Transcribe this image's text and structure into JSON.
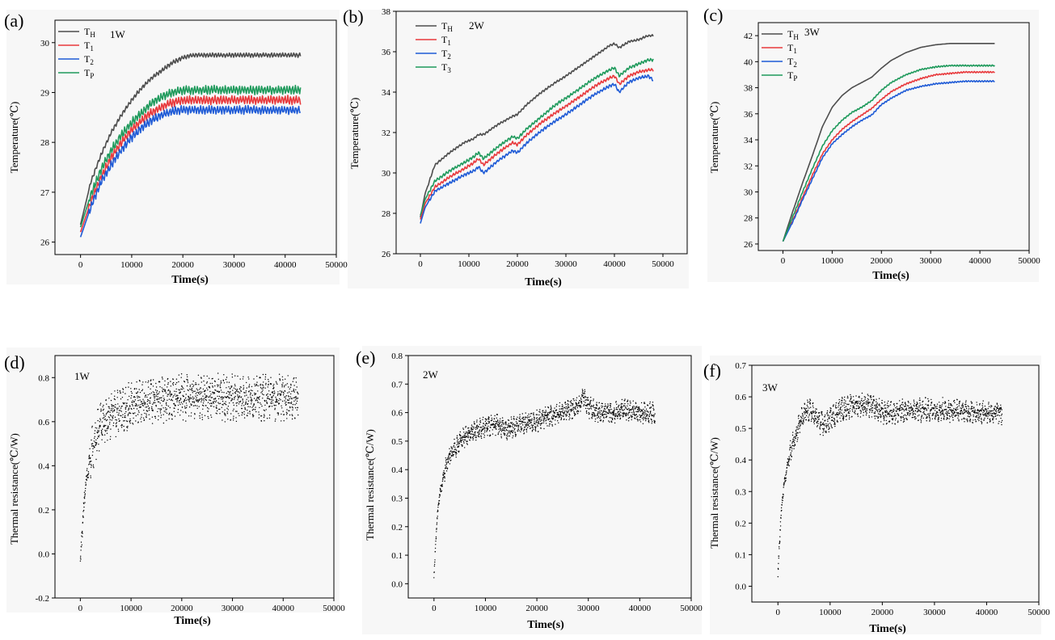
{
  "chart_data": [
    {
      "panel": "(a)",
      "type": "line",
      "annotation": "1W",
      "xlabel": "Time(s)",
      "ylabel": "Temperature(℃)",
      "xlim": [
        -5000,
        50000
      ],
      "ylim": [
        25.75,
        30.45
      ],
      "xticks": [
        0,
        10000,
        20000,
        30000,
        40000,
        50000
      ],
      "yticks": [
        26,
        27,
        28,
        29,
        30
      ],
      "x": [
        0,
        2000,
        4000,
        6000,
        8000,
        10000,
        12000,
        14000,
        16000,
        18000,
        20000,
        22000,
        25000,
        30000,
        35000,
        40000,
        43000
      ],
      "series": [
        {
          "name": "TH",
          "main": "T",
          "sub": "H",
          "color": "#4d4d4d",
          "amp": 0.04,
          "values": [
            26.35,
            27.2,
            27.75,
            28.2,
            28.55,
            28.85,
            29.1,
            29.3,
            29.45,
            29.6,
            29.7,
            29.75,
            29.75,
            29.75,
            29.75,
            29.75,
            29.75
          ]
        },
        {
          "name": "T1",
          "main": "T",
          "sub": "1",
          "color": "#e8393c",
          "amp": 0.08,
          "values": [
            26.2,
            26.8,
            27.3,
            27.7,
            28.0,
            28.25,
            28.45,
            28.6,
            28.72,
            28.8,
            28.85,
            28.85,
            28.85,
            28.85,
            28.85,
            28.85,
            28.85
          ]
        },
        {
          "name": "T2",
          "main": "T",
          "sub": "2",
          "color": "#1f5bd6",
          "amp": 0.08,
          "values": [
            26.1,
            26.7,
            27.2,
            27.55,
            27.85,
            28.1,
            28.3,
            28.45,
            28.55,
            28.62,
            28.65,
            28.65,
            28.65,
            28.65,
            28.65,
            28.65,
            28.65
          ]
        },
        {
          "name": "TP",
          "main": "T",
          "sub": "P",
          "color": "#1f9a5c",
          "amp": 0.08,
          "values": [
            26.3,
            26.95,
            27.45,
            27.85,
            28.15,
            28.4,
            28.6,
            28.8,
            28.92,
            29.0,
            29.05,
            29.05,
            29.05,
            29.05,
            29.05,
            29.05,
            29.05
          ]
        }
      ]
    },
    {
      "panel": "(b)",
      "type": "line",
      "annotation": "2W",
      "xlabel": "Time(s)",
      "ylabel": "Temperature(℃)",
      "xlim": [
        -5000,
        55000
      ],
      "ylim": [
        26,
        38
      ],
      "xticks": [
        0,
        10000,
        20000,
        30000,
        40000,
        50000
      ],
      "yticks": [
        26,
        28,
        30,
        32,
        34,
        36,
        38
      ],
      "x": [
        0,
        1000,
        3000,
        6000,
        9000,
        11000,
        12000,
        13000,
        16000,
        19000,
        20000,
        22000,
        25000,
        28000,
        30000,
        33000,
        36000,
        39000,
        40000,
        41000,
        43000,
        45000,
        47000,
        48000
      ],
      "series": [
        {
          "name": "TH",
          "main": "T",
          "sub": "H",
          "color": "#4d4d4d",
          "amp": 0.05,
          "values": [
            27.8,
            29.0,
            30.4,
            31.0,
            31.5,
            31.7,
            31.9,
            31.9,
            32.4,
            32.8,
            32.9,
            33.4,
            34.0,
            34.5,
            34.8,
            35.3,
            35.8,
            36.3,
            36.4,
            36.2,
            36.5,
            36.6,
            36.8,
            36.8
          ]
        },
        {
          "name": "T1",
          "main": "T",
          "sub": "1",
          "color": "#e8393c",
          "amp": 0.07,
          "values": [
            27.7,
            28.5,
            29.3,
            29.8,
            30.2,
            30.5,
            30.7,
            30.4,
            31.0,
            31.5,
            31.4,
            31.9,
            32.5,
            33.0,
            33.3,
            33.8,
            34.3,
            34.7,
            34.8,
            34.4,
            34.8,
            35.0,
            35.1,
            35.1
          ]
        },
        {
          "name": "T2",
          "main": "T",
          "sub": "2",
          "color": "#1f5bd6",
          "amp": 0.07,
          "values": [
            27.5,
            28.3,
            29.1,
            29.5,
            29.9,
            30.1,
            30.3,
            30.0,
            30.6,
            31.1,
            31.0,
            31.5,
            32.1,
            32.6,
            32.9,
            33.4,
            33.9,
            34.3,
            34.4,
            34.0,
            34.5,
            34.7,
            34.8,
            34.6
          ]
        },
        {
          "name": "T3",
          "main": "T",
          "sub": "3",
          "color": "#1f9a5c",
          "amp": 0.07,
          "values": [
            27.9,
            28.7,
            29.6,
            30.1,
            30.5,
            30.8,
            31.0,
            30.7,
            31.3,
            31.8,
            31.7,
            32.2,
            32.8,
            33.4,
            33.7,
            34.2,
            34.7,
            35.1,
            35.2,
            34.8,
            35.2,
            35.4,
            35.6,
            35.6
          ]
        }
      ]
    },
    {
      "panel": "(c)",
      "type": "line",
      "annotation": "3W",
      "xlabel": "Time(s)",
      "ylabel": "Temperature(℃)",
      "xlim": [
        -5000,
        50000
      ],
      "ylim": [
        25.5,
        43
      ],
      "xticks": [
        0,
        10000,
        20000,
        30000,
        40000,
        50000
      ],
      "yticks": [
        26,
        28,
        30,
        32,
        34,
        36,
        38,
        40,
        42
      ],
      "x": [
        0,
        2000,
        4000,
        6000,
        8000,
        10000,
        12000,
        14000,
        16000,
        18000,
        20000,
        22000,
        25000,
        28000,
        31000,
        34000,
        37000,
        40000,
        43000
      ],
      "series": [
        {
          "name": "TH",
          "main": "T",
          "sub": "H",
          "color": "#4d4d4d",
          "amp": 0.0,
          "values": [
            26.2,
            28.5,
            30.7,
            32.8,
            35.0,
            36.5,
            37.4,
            38.0,
            38.4,
            38.8,
            39.5,
            40.1,
            40.7,
            41.1,
            41.3,
            41.4,
            41.4,
            41.4,
            41.4
          ]
        },
        {
          "name": "T1",
          "main": "T",
          "sub": "1",
          "color": "#e8393c",
          "amp": 0.05,
          "values": [
            26.2,
            27.8,
            29.6,
            31.3,
            32.9,
            34.0,
            34.8,
            35.4,
            35.9,
            36.4,
            37.1,
            37.7,
            38.3,
            38.7,
            39.0,
            39.1,
            39.2,
            39.2,
            39.2
          ]
        },
        {
          "name": "T2",
          "main": "T",
          "sub": "2",
          "color": "#1f5bd6",
          "amp": 0.05,
          "values": [
            26.2,
            27.7,
            29.4,
            31.0,
            32.6,
            33.7,
            34.4,
            35.0,
            35.5,
            35.9,
            36.7,
            37.2,
            37.8,
            38.1,
            38.3,
            38.4,
            38.5,
            38.5,
            38.5
          ]
        },
        {
          "name": "TP",
          "main": "T",
          "sub": "P",
          "color": "#1f9a5c",
          "amp": 0.05,
          "values": [
            26.2,
            28.1,
            30.0,
            31.8,
            33.5,
            34.7,
            35.5,
            36.1,
            36.5,
            37.0,
            37.8,
            38.4,
            39.0,
            39.4,
            39.6,
            39.7,
            39.7,
            39.7,
            39.7
          ]
        }
      ]
    },
    {
      "panel": "(d)",
      "type": "scatter",
      "annotation": "1W",
      "xlabel": "Time(s)",
      "ylabel": "Thermal resistance(℃/W)",
      "xlim": [
        -5000,
        50000
      ],
      "ylim": [
        -0.2,
        0.9
      ],
      "xticks": [
        0,
        10000,
        20000,
        30000,
        40000,
        50000
      ],
      "yticks": [
        -0.2,
        0.0,
        0.2,
        0.4,
        0.6,
        0.8
      ],
      "x": [
        0,
        500,
        1000,
        2000,
        3000,
        4000,
        5000,
        6000,
        8000,
        10000,
        12000,
        15000,
        20000,
        25000,
        30000,
        35000,
        40000,
        43000
      ],
      "values": [
        -0.05,
        0.15,
        0.3,
        0.45,
        0.53,
        0.58,
        0.61,
        0.63,
        0.65,
        0.67,
        0.69,
        0.7,
        0.71,
        0.71,
        0.71,
        0.71,
        0.71,
        0.71
      ],
      "spread": 0.07
    },
    {
      "panel": "(e)",
      "type": "scatter",
      "annotation": "2W",
      "xlabel": "Time(s)",
      "ylabel": "Thermal resistance(℃/W)",
      "xlim": [
        -5000,
        50000
      ],
      "ylim": [
        -0.05,
        0.8
      ],
      "xticks": [
        0,
        10000,
        20000,
        30000,
        40000,
        50000
      ],
      "yticks": [
        0.0,
        0.1,
        0.2,
        0.3,
        0.4,
        0.5,
        0.6,
        0.7,
        0.8
      ],
      "x": [
        0,
        500,
        1000,
        2000,
        3000,
        5000,
        7000,
        10000,
        12000,
        14000,
        17000,
        20000,
        23000,
        26000,
        28000,
        29000,
        30000,
        32000,
        35000,
        37000,
        40000,
        43000
      ],
      "values": [
        0.02,
        0.2,
        0.3,
        0.39,
        0.45,
        0.5,
        0.53,
        0.55,
        0.56,
        0.54,
        0.56,
        0.57,
        0.59,
        0.61,
        0.62,
        0.66,
        0.62,
        0.6,
        0.6,
        0.61,
        0.6,
        0.6
      ],
      "spread": 0.025
    },
    {
      "panel": "(f)",
      "type": "scatter",
      "annotation": "3W",
      "xlabel": "Time(s)",
      "ylabel": "Thermal resistance(℃/W)",
      "xlim": [
        -5000,
        50000
      ],
      "ylim": [
        -0.05,
        0.7
      ],
      "xticks": [
        0,
        10000,
        20000,
        30000,
        40000,
        50000
      ],
      "yticks": [
        0.0,
        0.1,
        0.2,
        0.3,
        0.4,
        0.5,
        0.6,
        0.7
      ],
      "x": [
        0,
        500,
        1000,
        2000,
        3000,
        4000,
        5000,
        6000,
        7000,
        8000,
        9000,
        10000,
        12000,
        14000,
        16000,
        18000,
        19000,
        20000,
        25000,
        30000,
        35000,
        40000,
        43000
      ],
      "values": [
        0.04,
        0.2,
        0.3,
        0.4,
        0.46,
        0.51,
        0.54,
        0.56,
        0.54,
        0.52,
        0.51,
        0.53,
        0.56,
        0.57,
        0.575,
        0.57,
        0.56,
        0.55,
        0.555,
        0.56,
        0.555,
        0.55,
        0.55
      ],
      "spread": 0.025
    }
  ]
}
